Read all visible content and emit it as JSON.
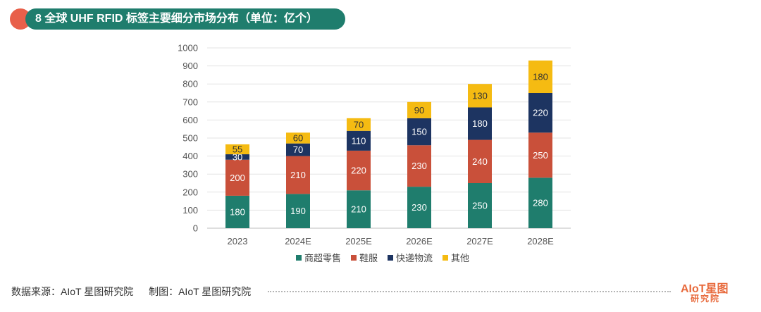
{
  "header": {
    "title": "8 全球 UHF RFID 标签主要细分市场分布（单位：亿个）"
  },
  "chart_data": {
    "type": "bar",
    "stacked": true,
    "categories": [
      "2023",
      "2024E",
      "2025E",
      "2026E",
      "2027E",
      "2028E"
    ],
    "series": [
      {
        "name": "商超零售",
        "color": "#1f7d6d",
        "values": [
          180,
          190,
          210,
          230,
          250,
          280
        ]
      },
      {
        "name": "鞋服",
        "color": "#c9503a",
        "values": [
          200,
          210,
          220,
          230,
          240,
          250
        ]
      },
      {
        "name": "快递物流",
        "color": "#1d3461",
        "values": [
          30,
          70,
          110,
          150,
          180,
          220
        ]
      },
      {
        "name": "其他",
        "color": "#f5bb12",
        "values": [
          55,
          60,
          70,
          90,
          130,
          180
        ]
      }
    ],
    "ylim": [
      0,
      1000
    ],
    "yticks": [
      0,
      100,
      200,
      300,
      400,
      500,
      600,
      700,
      800,
      900,
      1000
    ],
    "grid": true,
    "legend_position": "bottom"
  },
  "footer": {
    "source": "数据来源：AIoT 星图研究院",
    "made_by": "制图：AIoT 星图研究院"
  },
  "logo": {
    "line1": "AIoT星图",
    "line2": "研究院"
  }
}
